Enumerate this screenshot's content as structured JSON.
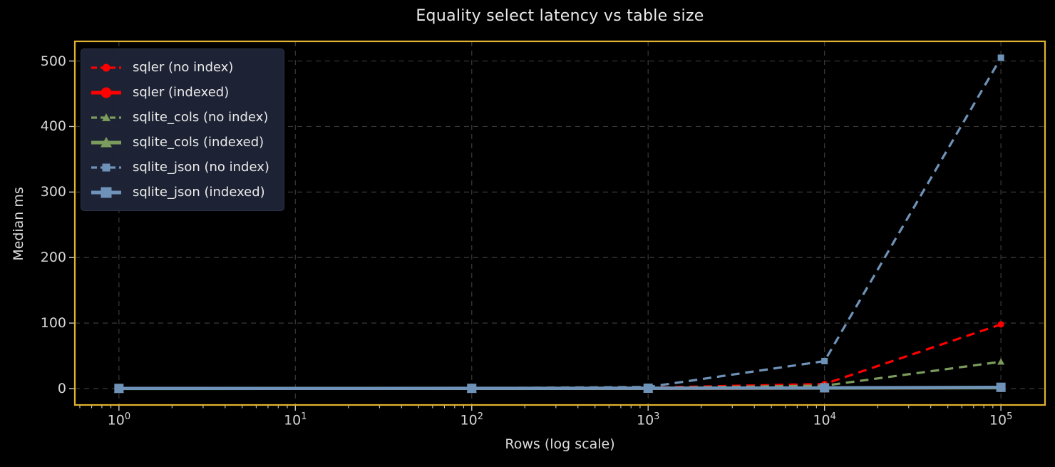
{
  "colors": {
    "figure_background": "#000000",
    "axes_border": "#e2b32e",
    "grid": "#3a3a3a",
    "tick_marks": "#c9c9c9",
    "tick_text": "#d6d6d6",
    "title_text": "#ebebeb",
    "legend_background": "#1e2436",
    "series_red": "#ff0000",
    "series_green": "#7b9c5d",
    "series_blue": "#6f93b8"
  },
  "chart_data": {
    "type": "line",
    "title": "Equality select latency vs table size",
    "xlabel": "Rows (log scale)",
    "ylabel": "Median ms",
    "x_scale": "log",
    "grid": true,
    "legend_position": "upper-left",
    "x": [
      1,
      100,
      1000,
      10000,
      100000
    ],
    "x_tick_base": "10",
    "x_tick_exponents": [
      0,
      1,
      2,
      3,
      4,
      5
    ],
    "y_ticks": [
      0,
      100,
      200,
      300,
      400,
      500
    ],
    "xlim_log10": [
      -0.25,
      5.25
    ],
    "ylim": [
      -25,
      530
    ],
    "series": [
      {
        "name": "sqler (no index)",
        "color": "#ff0000",
        "style": "dashed",
        "marker": "circle",
        "marker_size": 9,
        "values": [
          0.3,
          0.5,
          1.5,
          7,
          98
        ]
      },
      {
        "name": "sqler (indexed)",
        "color": "#ff0000",
        "style": "solid",
        "marker": "circle",
        "marker_size": 13,
        "values": [
          0.3,
          0.3,
          0.4,
          0.8,
          1.5
        ]
      },
      {
        "name": "sqlite_cols (no index)",
        "color": "#7b9c5d",
        "style": "dashed",
        "marker": "triangle",
        "marker_size": 10,
        "values": [
          0.2,
          0.4,
          1.0,
          4.5,
          41
        ]
      },
      {
        "name": "sqlite_cols (indexed)",
        "color": "#7b9c5d",
        "style": "solid",
        "marker": "triangle",
        "marker_size": 14,
        "values": [
          0.2,
          0.3,
          0.4,
          0.7,
          1.2
        ]
      },
      {
        "name": "sqlite_json (no index)",
        "color": "#6f93b8",
        "style": "dashed",
        "marker": "square",
        "marker_size": 9,
        "values": [
          0.3,
          0.6,
          2.5,
          42,
          505
        ]
      },
      {
        "name": "sqlite_json (indexed)",
        "color": "#6f93b8",
        "style": "solid",
        "marker": "square",
        "marker_size": 13,
        "values": [
          0.3,
          0.4,
          0.6,
          1.2,
          2.0
        ]
      }
    ]
  }
}
